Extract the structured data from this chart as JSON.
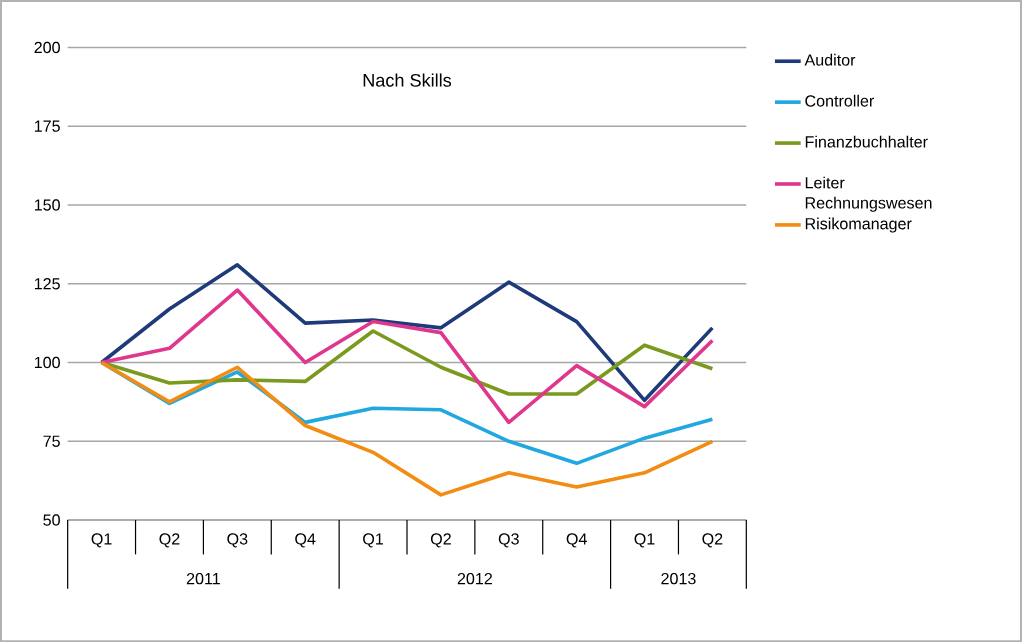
{
  "chart_data": {
    "type": "line",
    "title": "Nach Skills",
    "categories": [
      "Q1",
      "Q2",
      "Q3",
      "Q4",
      "Q1",
      "Q2",
      "Q3",
      "Q4",
      "Q1",
      "Q2"
    ],
    "series": [
      {
        "name": "Auditor",
        "color": "#1f3a7a",
        "values": [
          100,
          117,
          131,
          112.5,
          113.5,
          111,
          125.5,
          113,
          88,
          111
        ]
      },
      {
        "name": "Controller",
        "color": "#21a8e0",
        "values": [
          100,
          87,
          97,
          81,
          85.5,
          85,
          75,
          68,
          76,
          82
        ]
      },
      {
        "name": "Finanzbuchhalter",
        "color": "#7a9a1e",
        "values": [
          100,
          93.5,
          94.5,
          94,
          110,
          98.5,
          90,
          90,
          105.5,
          98
        ]
      },
      {
        "name": "Leiter Rechnungswesen",
        "color": "#e0378e",
        "values": [
          100,
          104.5,
          123,
          100,
          113,
          109.5,
          81,
          99,
          86,
          107
        ]
      },
      {
        "name": "Risikomanager",
        "color": "#f28c12",
        "values": [
          100,
          87.5,
          98.5,
          80,
          71.5,
          58,
          65,
          60.5,
          65,
          75
        ]
      }
    ],
    "ylim": [
      50,
      200
    ],
    "yticks": [
      50,
      75,
      100,
      125,
      150,
      175,
      200
    ],
    "grid": "y",
    "legend": "right",
    "marker": "none",
    "line_style": "solid",
    "annotations": [
      "2011",
      "2012",
      "2013"
    ]
  }
}
